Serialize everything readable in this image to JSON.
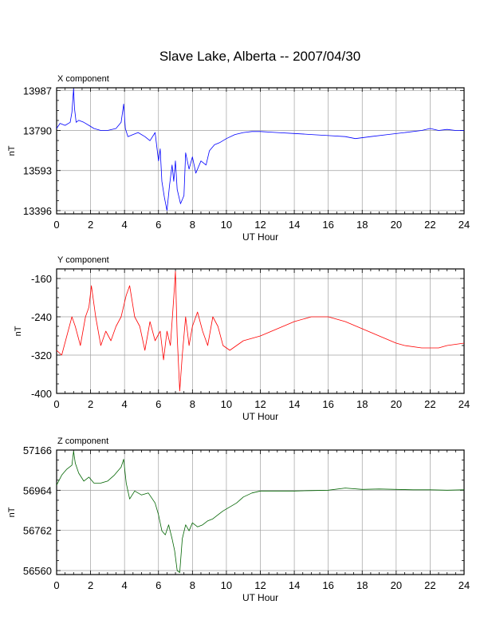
{
  "title": "Slave Lake, Alberta -- 2007/04/30",
  "chart_data": [
    {
      "type": "line",
      "panel_label": "X component",
      "xlabel": "UT Hour",
      "ylabel": "nT",
      "xlim": [
        0,
        24
      ],
      "ylim": [
        13380,
        14000
      ],
      "xticks": [
        0,
        2,
        4,
        6,
        8,
        10,
        12,
        14,
        16,
        18,
        20,
        22,
        24
      ],
      "xtick_labels": [
        "0",
        "2",
        "4",
        "6",
        "8",
        "10",
        "12",
        "14",
        "16",
        "18",
        "20",
        "22",
        "24"
      ],
      "yticks": [
        13396,
        13593,
        13790,
        13987
      ],
      "ytick_labels": [
        "13396",
        "13593",
        "13790",
        "13987"
      ],
      "grid": true,
      "color": "#0000ff",
      "series": [
        {
          "x": [
            0,
            0.2,
            0.5,
            0.8,
            0.9,
            1.0,
            1.05,
            1.15,
            1.3,
            1.6,
            1.9,
            2.2,
            2.6,
            3.0,
            3.5,
            3.8,
            3.95,
            4.05,
            4.2,
            4.5,
            4.8,
            5.2,
            5.5,
            5.8,
            6.0,
            6.1,
            6.2,
            6.35,
            6.5,
            6.65,
            6.8,
            6.9,
            7.0,
            7.1,
            7.3,
            7.5,
            7.6,
            7.8,
            8.0,
            8.2,
            8.5,
            8.8,
            9.0,
            9.3,
            9.6,
            10.0,
            10.5,
            11.0,
            11.5,
            12.0,
            13.0,
            14.0,
            15.0,
            16.0,
            17.0,
            17.6,
            18.5,
            19.5,
            20.5,
            21.5,
            22.0,
            22.5,
            23.0,
            23.5,
            24.0
          ],
          "values": [
            13800,
            13825,
            13815,
            13830,
            13880,
            13995,
            13900,
            13830,
            13840,
            13830,
            13815,
            13800,
            13790,
            13790,
            13800,
            13830,
            13920,
            13800,
            13760,
            13770,
            13780,
            13760,
            13740,
            13780,
            13640,
            13700,
            13540,
            13460,
            13396,
            13520,
            13620,
            13540,
            13640,
            13500,
            13430,
            13470,
            13680,
            13600,
            13660,
            13580,
            13640,
            13620,
            13690,
            13720,
            13730,
            13750,
            13770,
            13780,
            13785,
            13785,
            13780,
            13775,
            13770,
            13765,
            13760,
            13750,
            13760,
            13770,
            13780,
            13790,
            13800,
            13790,
            13795,
            13790,
            13790
          ]
        }
      ]
    },
    {
      "type": "line",
      "panel_label": "Y component",
      "xlabel": "UT Hour",
      "ylabel": "nT",
      "xlim": [
        0,
        24
      ],
      "ylim": [
        -400,
        -140
      ],
      "xticks": [
        0,
        2,
        4,
        6,
        8,
        10,
        12,
        14,
        16,
        18,
        20,
        22,
        24
      ],
      "xtick_labels": [
        "0",
        "2",
        "4",
        "6",
        "8",
        "10",
        "12",
        "14",
        "16",
        "18",
        "20",
        "22",
        "24"
      ],
      "yticks": [
        -400,
        -320,
        -240,
        -160
      ],
      "ytick_labels": [
        "-400",
        "-320",
        "-240",
        "-160"
      ],
      "grid": true,
      "color": "#ff0000",
      "series": [
        {
          "x": [
            0,
            0.3,
            0.6,
            0.9,
            1.1,
            1.4,
            1.7,
            1.9,
            2.05,
            2.3,
            2.6,
            2.9,
            3.2,
            3.5,
            3.8,
            4.1,
            4.3,
            4.6,
            4.9,
            5.2,
            5.5,
            5.8,
            6.1,
            6.3,
            6.5,
            6.7,
            6.9,
            7.0,
            7.1,
            7.25,
            7.4,
            7.6,
            7.8,
            8.0,
            8.3,
            8.6,
            8.9,
            9.2,
            9.5,
            9.8,
            10.2,
            10.6,
            11.0,
            11.5,
            12.0,
            13.0,
            14.0,
            15.0,
            16.0,
            17.0,
            18.0,
            19.0,
            20.0,
            20.5,
            21.5,
            22.5,
            23.0,
            24.0
          ],
          "values": [
            -310,
            -320,
            -280,
            -240,
            -260,
            -300,
            -240,
            -220,
            -175,
            -240,
            -300,
            -270,
            -290,
            -260,
            -240,
            -195,
            -175,
            -240,
            -260,
            -310,
            -250,
            -290,
            -270,
            -330,
            -270,
            -300,
            -200,
            -145,
            -280,
            -395,
            -320,
            -240,
            -300,
            -260,
            -230,
            -270,
            -300,
            -240,
            -260,
            -300,
            -310,
            -300,
            -290,
            -285,
            -280,
            -265,
            -250,
            -240,
            -240,
            -250,
            -265,
            -280,
            -295,
            -300,
            -305,
            -305,
            -300,
            -295
          ]
        }
      ]
    },
    {
      "type": "line",
      "panel_label": "Z component",
      "xlabel": "UT Hour",
      "ylabel": "nT",
      "xlim": [
        0,
        24
      ],
      "ylim": [
        56540,
        57166
      ],
      "xticks": [
        0,
        2,
        4,
        6,
        8,
        10,
        12,
        14,
        16,
        18,
        20,
        22,
        24
      ],
      "xtick_labels": [
        "0",
        "2",
        "4",
        "6",
        "8",
        "10",
        "12",
        "14",
        "16",
        "18",
        "20",
        "22",
        "24"
      ],
      "yticks": [
        56560,
        56762,
        56964,
        57166
      ],
      "ytick_labels": [
        "56560",
        "56762",
        "56964",
        "57166"
      ],
      "grid": true,
      "color": "#006400",
      "series": [
        {
          "x": [
            0,
            0.3,
            0.6,
            0.9,
            1.0,
            1.1,
            1.3,
            1.6,
            1.9,
            2.2,
            2.6,
            3.0,
            3.4,
            3.8,
            3.95,
            4.1,
            4.3,
            4.6,
            5.0,
            5.4,
            5.8,
            6.0,
            6.2,
            6.4,
            6.6,
            6.8,
            6.95,
            7.1,
            7.25,
            7.4,
            7.6,
            7.8,
            8.0,
            8.3,
            8.6,
            8.9,
            9.2,
            9.5,
            9.8,
            10.2,
            10.6,
            11.0,
            11.5,
            12.0,
            13.0,
            14.0,
            15.0,
            16.0,
            17.0,
            18.0,
            19.0,
            20.0,
            21.0,
            22.0,
            23.0,
            24.0
          ],
          "values": [
            56990,
            57040,
            57070,
            57090,
            57160,
            57100,
            57050,
            57010,
            57030,
            57000,
            57000,
            57010,
            57040,
            57080,
            57120,
            57000,
            56920,
            56960,
            56940,
            56950,
            56900,
            56840,
            56760,
            56740,
            56790,
            56720,
            56660,
            56560,
            56550,
            56720,
            56790,
            56760,
            56800,
            56780,
            56790,
            56810,
            56820,
            56840,
            56860,
            56880,
            56900,
            56930,
            56950,
            56960,
            56960,
            56960,
            56962,
            56964,
            56975,
            56968,
            56970,
            56968,
            56966,
            56966,
            56964,
            56966
          ]
        }
      ]
    }
  ]
}
